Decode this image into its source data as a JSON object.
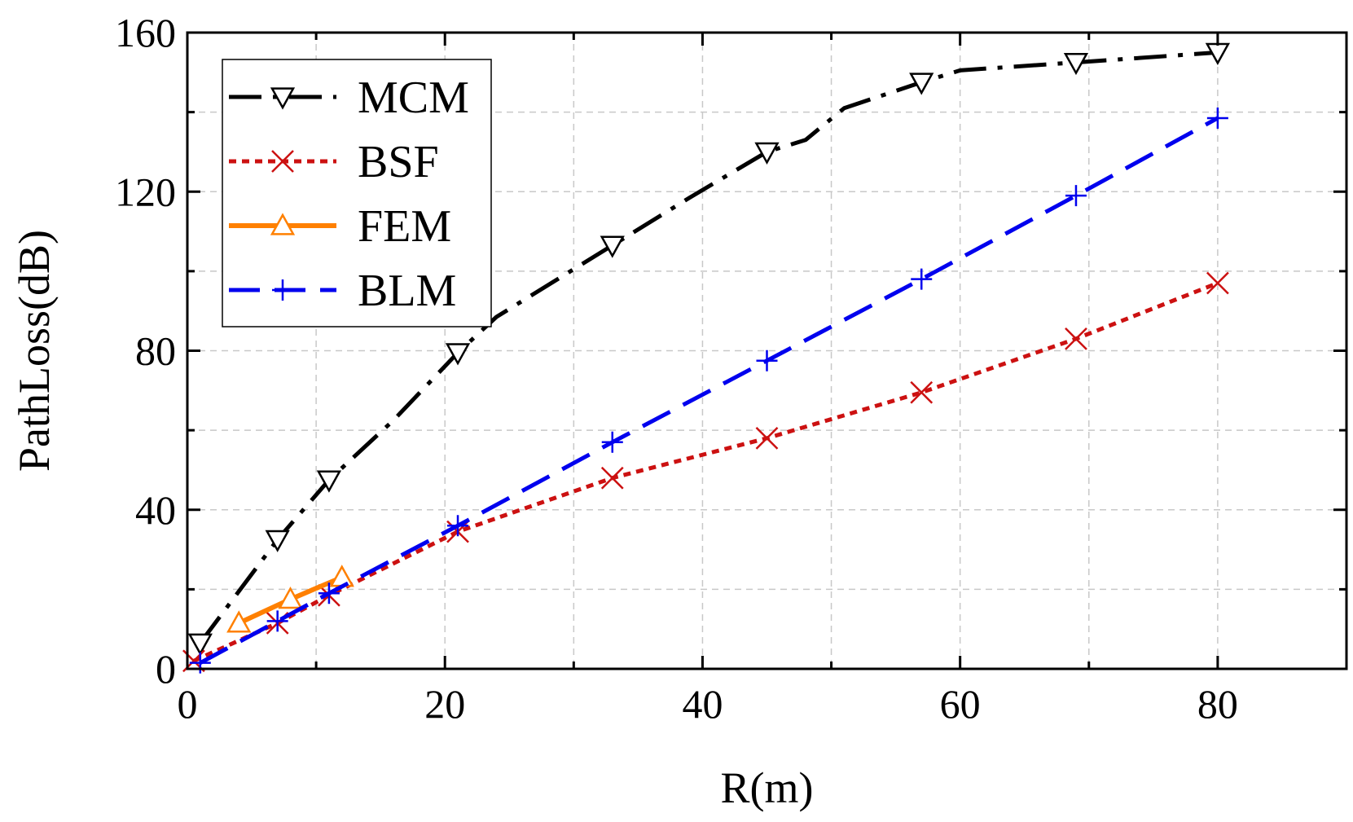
{
  "chart_data": {
    "type": "line",
    "title": "",
    "xlabel": "R(m)",
    "ylabel": "PathLoss(dB)",
    "xlim": [
      0,
      90
    ],
    "ylim": [
      0,
      160
    ],
    "xticks": [
      0,
      20,
      40,
      60,
      80
    ],
    "yticks": [
      0,
      40,
      80,
      120,
      160
    ],
    "grid": true,
    "legend_position": "top-left",
    "series": [
      {
        "name": "MCM",
        "color": "#000000",
        "line_style": "dash-dot",
        "marker": "triangle-down",
        "x": [
          1,
          7,
          11,
          21,
          33,
          45,
          57,
          69,
          80
        ],
        "y": [
          6.5,
          32.5,
          47.5,
          79.5,
          106.5,
          130,
          147.5,
          152.5,
          155
        ],
        "line_x": [
          1,
          7,
          11,
          16,
          21,
          24,
          33,
          39,
          45,
          48,
          51,
          57,
          60,
          69,
          80
        ],
        "line_y": [
          6.5,
          32.5,
          47.5,
          62.5,
          79.5,
          88.5,
          106.5,
          118.5,
          130,
          133,
          141,
          147.5,
          150.5,
          152.5,
          155
        ]
      },
      {
        "name": "BSF",
        "color": "#cc1111",
        "line_style": "dotted",
        "marker": "x",
        "x": [
          0.5,
          7,
          11,
          21,
          33,
          45,
          57,
          69,
          80
        ],
        "y": [
          2,
          11.5,
          18.5,
          34.5,
          48,
          58,
          69.5,
          83,
          97
        ],
        "line_x": [
          0.5,
          7,
          11,
          21,
          33,
          45,
          57,
          69,
          80
        ],
        "line_y": [
          2,
          11.5,
          18.5,
          34.5,
          48,
          58,
          69.5,
          83,
          97
        ]
      },
      {
        "name": "FEM",
        "color": "#ff8000",
        "line_style": "solid",
        "marker": "triangle-up",
        "x": [
          4,
          8,
          12
        ],
        "y": [
          11.5,
          17.5,
          23
        ],
        "line_x": [
          4,
          8,
          12
        ],
        "line_y": [
          11.5,
          17.5,
          23
        ]
      },
      {
        "name": "BLM",
        "color": "#0000ee",
        "line_style": "dashed",
        "marker": "plus",
        "x": [
          1,
          7,
          11,
          21,
          33,
          45,
          57,
          69,
          80
        ],
        "y": [
          1.5,
          12,
          19,
          36,
          57,
          77.5,
          98,
          119,
          138.5
        ],
        "line_x": [
          1,
          7,
          11,
          21,
          33,
          45,
          57,
          69,
          80
        ],
        "line_y": [
          1.5,
          12,
          19,
          36,
          57,
          77.5,
          98,
          119,
          138.5
        ]
      }
    ]
  }
}
